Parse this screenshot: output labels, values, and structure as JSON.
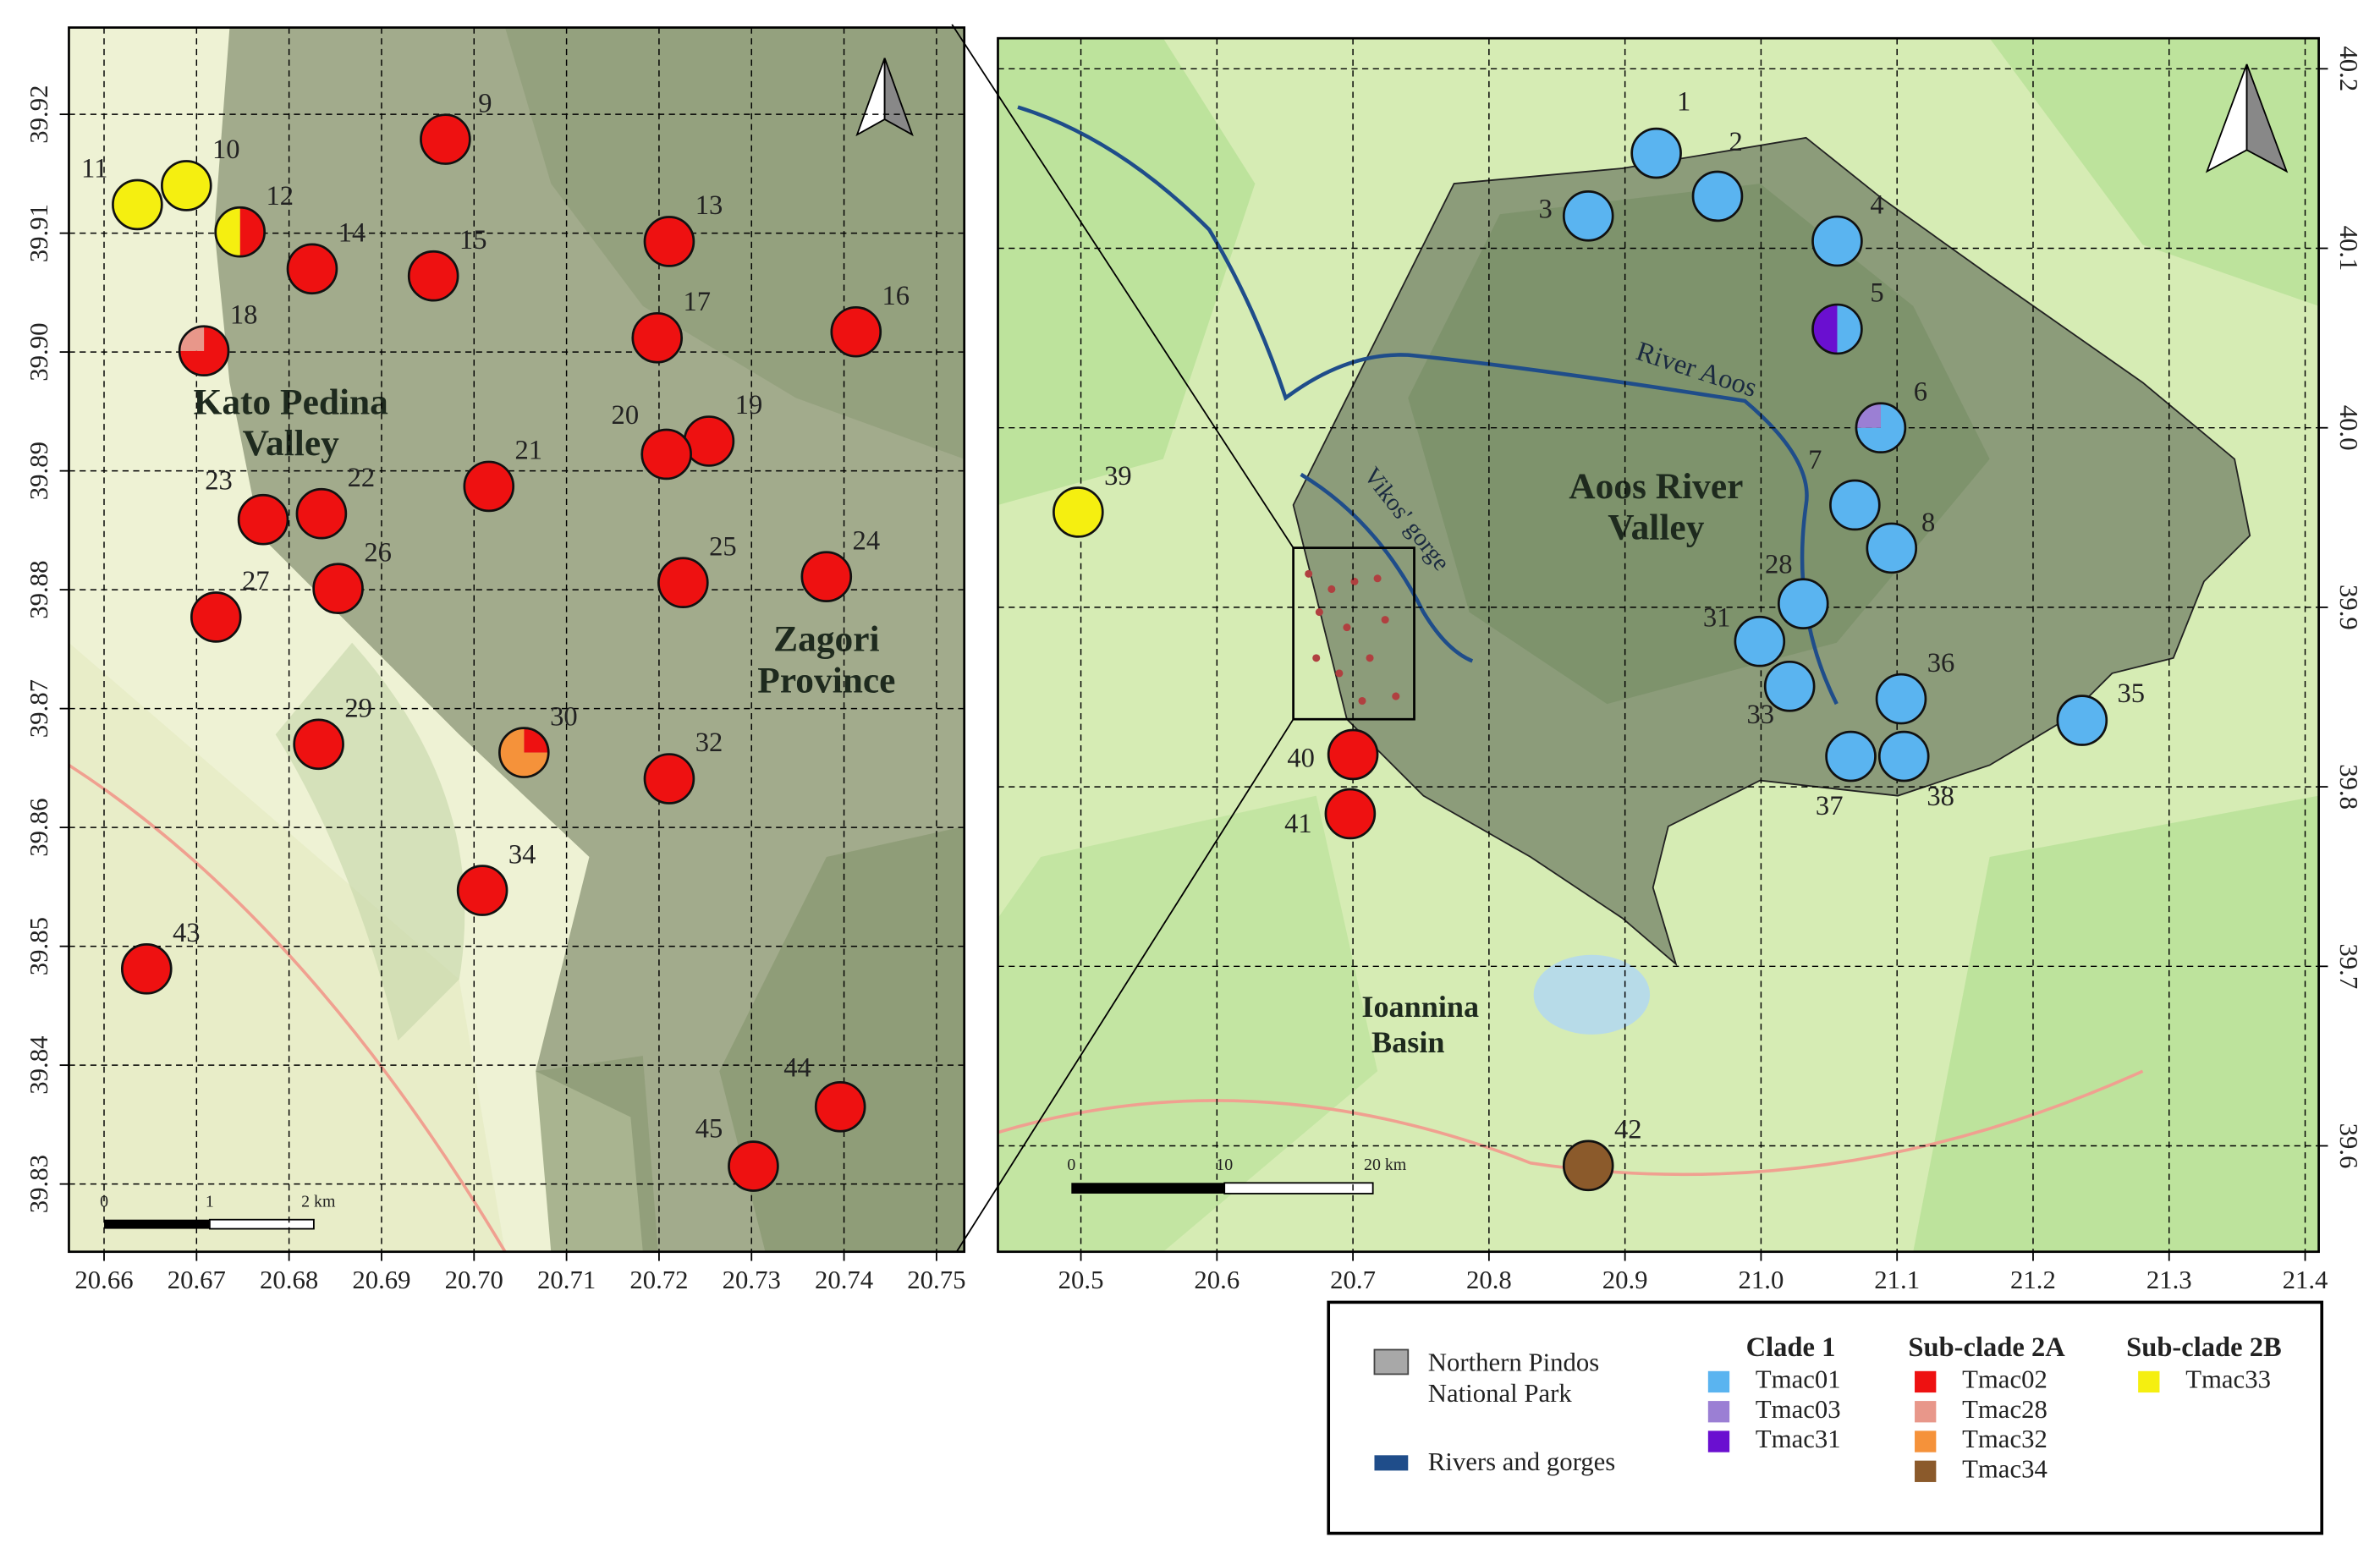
{
  "maps": [
    {
      "xlim": [
        20.6562,
        20.753
      ],
      "ylim": [
        39.8243,
        39.9273
      ],
      "xticks": [
        20.66,
        20.67,
        20.68,
        20.69,
        {
          "value": 20.7,
          "label": "20.70"
        },
        20.71,
        20.72,
        20.73,
        20.74,
        20.75
      ],
      "yticks": [
        39.92,
        39.91,
        {
          "value": 39.9,
          "label": "39.90"
        },
        39.89,
        39.88,
        39.87,
        39.86,
        39.85,
        39.84,
        39.83
      ],
      "grid": true,
      "region_labels": [
        [
          "Kato Pedina",
          "Valley"
        ],
        [
          "Zagori",
          "Province"
        ]
      ],
      "scale_labels": [
        "0",
        "1",
        "2 km"
      ],
      "sites": [
        {
          "label": "9",
          "lon": 20.6969,
          "lat": 39.9179,
          "colors": [
            "#ee1111"
          ],
          "shares": [
            100
          ]
        },
        {
          "label": "10",
          "lon": 20.6689,
          "lat": 39.914,
          "colors": [
            "#f5ef10"
          ],
          "shares": [
            100
          ]
        },
        {
          "label": "11",
          "lon": 20.6636,
          "lat": 39.9124,
          "colors": [
            "#f5ef10"
          ],
          "shares": [
            100
          ]
        },
        {
          "label": "12",
          "lon": 20.6747,
          "lat": 39.9101,
          "colors": [
            "#ee1111",
            "#f5ef10"
          ],
          "shares": [
            50,
            50
          ]
        },
        {
          "label": "13",
          "lon": 20.7211,
          "lat": 39.9093,
          "colors": [
            "#ee1111"
          ],
          "shares": [
            100
          ]
        },
        {
          "label": "14",
          "lon": 20.6825,
          "lat": 39.907,
          "colors": [
            "#ee1111"
          ],
          "shares": [
            100
          ]
        },
        {
          "label": "15",
          "lon": 20.6956,
          "lat": 39.9064,
          "colors": [
            "#ee1111"
          ],
          "shares": [
            100
          ]
        },
        {
          "label": "16",
          "lon": 20.7413,
          "lat": 39.9017,
          "colors": [
            "#ee1111"
          ],
          "shares": [
            100
          ]
        },
        {
          "label": "17",
          "lon": 20.7198,
          "lat": 39.9012,
          "colors": [
            "#ee1111"
          ],
          "shares": [
            100
          ]
        },
        {
          "label": "18",
          "lon": 20.6708,
          "lat": 39.9001,
          "colors": [
            "#ee1111",
            "#e8978a"
          ],
          "shares": [
            75,
            25
          ]
        },
        {
          "label": "19",
          "lon": 20.7254,
          "lat": 39.8925,
          "colors": [
            "#ee1111"
          ],
          "shares": [
            100
          ]
        },
        {
          "label": "20",
          "lon": 20.7208,
          "lat": 39.8914,
          "colors": [
            "#ee1111"
          ],
          "shares": [
            100
          ]
        },
        {
          "label": "21",
          "lon": 20.7016,
          "lat": 39.8887,
          "colors": [
            "#ee1111"
          ],
          "shares": [
            100
          ]
        },
        {
          "label": "22",
          "lon": 20.6835,
          "lat": 39.8864,
          "colors": [
            "#ee1111"
          ],
          "shares": [
            100
          ]
        },
        {
          "label": "23",
          "lon": 20.6772,
          "lat": 39.8859,
          "colors": [
            "#ee1111"
          ],
          "shares": [
            100
          ]
        },
        {
          "label": "24",
          "lon": 20.7381,
          "lat": 39.8811,
          "colors": [
            "#ee1111"
          ],
          "shares": [
            100
          ]
        },
        {
          "label": "25",
          "lon": 20.7226,
          "lat": 39.8806,
          "colors": [
            "#ee1111"
          ],
          "shares": [
            100
          ]
        },
        {
          "label": "26",
          "lon": 20.6853,
          "lat": 39.8801,
          "colors": [
            "#ee1111"
          ],
          "shares": [
            100
          ]
        },
        {
          "label": "27",
          "lon": 20.6721,
          "lat": 39.8777,
          "colors": [
            "#ee1111"
          ],
          "shares": [
            100
          ]
        },
        {
          "label": "29",
          "lon": 20.6832,
          "lat": 39.867,
          "colors": [
            "#ee1111"
          ],
          "shares": [
            100
          ]
        },
        {
          "label": "30",
          "lon": 20.7054,
          "lat": 39.8663,
          "colors": [
            "#ee1111",
            "#f5923a"
          ],
          "shares": [
            25,
            75
          ]
        },
        {
          "label": "32",
          "lon": 20.7211,
          "lat": 39.8641,
          "colors": [
            "#ee1111"
          ],
          "shares": [
            100
          ]
        },
        {
          "label": "34",
          "lon": 20.7009,
          "lat": 39.8547,
          "colors": [
            "#ee1111"
          ],
          "shares": [
            100
          ]
        },
        {
          "label": "43",
          "lon": 20.6646,
          "lat": 39.8481,
          "colors": [
            "#ee1111"
          ],
          "shares": [
            100
          ]
        },
        {
          "label": "44",
          "lon": 20.7396,
          "lat": 39.8365,
          "colors": [
            "#ee1111"
          ],
          "shares": [
            100
          ]
        },
        {
          "label": "45",
          "lon": 20.7302,
          "lat": 39.8315,
          "colors": [
            "#ee1111"
          ],
          "shares": [
            100
          ]
        }
      ]
    },
    {
      "xlim": [
        20.439,
        21.41
      ],
      "ylim": [
        39.541,
        40.217
      ],
      "xticks": [
        20.5,
        20.6,
        20.7,
        20.8,
        20.9,
        {
          "value": 21,
          "label": "21.0"
        },
        21.1,
        21.2,
        21.3,
        21.4
      ],
      "yticks": [
        40.2,
        40.1,
        {
          "value": 40,
          "label": "40.0"
        },
        39.9,
        39.8,
        39.7,
        39.6
      ],
      "grid": true,
      "region_labels": [
        [
          "Aoos River",
          "Valley"
        ],
        [
          "Ioannina",
          "Basin"
        ],
        [
          "River Aoos"
        ],
        [
          "Vikos' gorge"
        ]
      ],
      "scale_labels": [
        "0",
        "10",
        "20 km"
      ],
      "sites": [
        {
          "label": "1",
          "lon": 20.923,
          "lat": 40.153,
          "colors": [
            "#5ab4f0"
          ],
          "shares": [
            100
          ]
        },
        {
          "label": "2",
          "lon": 20.968,
          "lat": 40.129,
          "colors": [
            "#5ab4f0"
          ],
          "shares": [
            100
          ]
        },
        {
          "label": "3",
          "lon": 20.873,
          "lat": 40.118,
          "colors": [
            "#5ab4f0"
          ],
          "shares": [
            100
          ]
        },
        {
          "label": "4",
          "lon": 21.056,
          "lat": 40.104,
          "colors": [
            "#5ab4f0"
          ],
          "shares": [
            100
          ]
        },
        {
          "label": "5",
          "lon": 21.056,
          "lat": 40.055,
          "colors": [
            "#5ab4f0",
            "#6a0fd0"
          ],
          "shares": [
            50,
            50
          ]
        },
        {
          "label": "6",
          "lon": 21.088,
          "lat": 40.0,
          "colors": [
            "#5ab4f0",
            "#9b7fd4"
          ],
          "shares": [
            75,
            25
          ]
        },
        {
          "label": "7",
          "lon": 21.069,
          "lat": 39.957,
          "colors": [
            "#5ab4f0"
          ],
          "shares": [
            100
          ]
        },
        {
          "label": "8",
          "lon": 21.096,
          "lat": 39.933,
          "colors": [
            "#5ab4f0"
          ],
          "shares": [
            100
          ]
        },
        {
          "label": "28",
          "lon": 21.031,
          "lat": 39.902,
          "colors": [
            "#5ab4f0"
          ],
          "shares": [
            100
          ]
        },
        {
          "label": "31",
          "lon": 20.999,
          "lat": 39.881,
          "colors": [
            "#5ab4f0"
          ],
          "shares": [
            100
          ]
        },
        {
          "label": "33",
          "lon": 21.021,
          "lat": 39.856,
          "colors": [
            "#5ab4f0"
          ],
          "shares": [
            100
          ]
        },
        {
          "label": "35",
          "lon": 21.236,
          "lat": 39.837,
          "colors": [
            "#5ab4f0"
          ],
          "shares": [
            100
          ]
        },
        {
          "label": "36",
          "lon": 21.103,
          "lat": 39.849,
          "colors": [
            "#5ab4f0"
          ],
          "shares": [
            100
          ]
        },
        {
          "label": "37",
          "lon": 21.066,
          "lat": 39.817,
          "colors": [
            "#5ab4f0"
          ],
          "shares": [
            100
          ]
        },
        {
          "label": "38",
          "lon": 21.105,
          "lat": 39.817,
          "colors": [
            "#5ab4f0"
          ],
          "shares": [
            100
          ]
        },
        {
          "label": "39",
          "lon": 20.498,
          "lat": 39.953,
          "colors": [
            "#f5ef10"
          ],
          "shares": [
            100
          ]
        },
        {
          "label": "40",
          "lon": 20.7,
          "lat": 39.818,
          "colors": [
            "#ee1111"
          ],
          "shares": [
            100
          ]
        },
        {
          "label": "41",
          "lon": 20.698,
          "lat": 39.785,
          "colors": [
            "#ee1111"
          ],
          "shares": [
            100
          ]
        },
        {
          "label": "42",
          "lon": 20.873,
          "lat": 39.589,
          "colors": [
            "#8b5a2b"
          ],
          "shares": [
            100
          ]
        }
      ]
    }
  ],
  "legend": {
    "park": [
      "Northern Pindos",
      "National Park"
    ],
    "rivers": "Rivers and gorges",
    "groups": [
      {
        "title": "Clade 1",
        "items": [
          {
            "name": "Tmac01",
            "color": "#5ab4f0"
          },
          {
            "name": "Tmac03",
            "color": "#9b7fd4"
          },
          {
            "name": "Tmac31",
            "color": "#6a0fd0"
          }
        ]
      },
      {
        "title": "Sub-clade 2A",
        "items": [
          {
            "name": "Tmac02",
            "color": "#ee1111"
          },
          {
            "name": "Tmac28",
            "color": "#e8978a"
          },
          {
            "name": "Tmac32",
            "color": "#f5923a"
          },
          {
            "name": "Tmac34",
            "color": "#8b5a2b"
          }
        ]
      },
      {
        "title": "Sub-clade 2B",
        "items": [
          {
            "name": "Tmac33",
            "color": "#f5ef10"
          }
        ]
      }
    ]
  }
}
